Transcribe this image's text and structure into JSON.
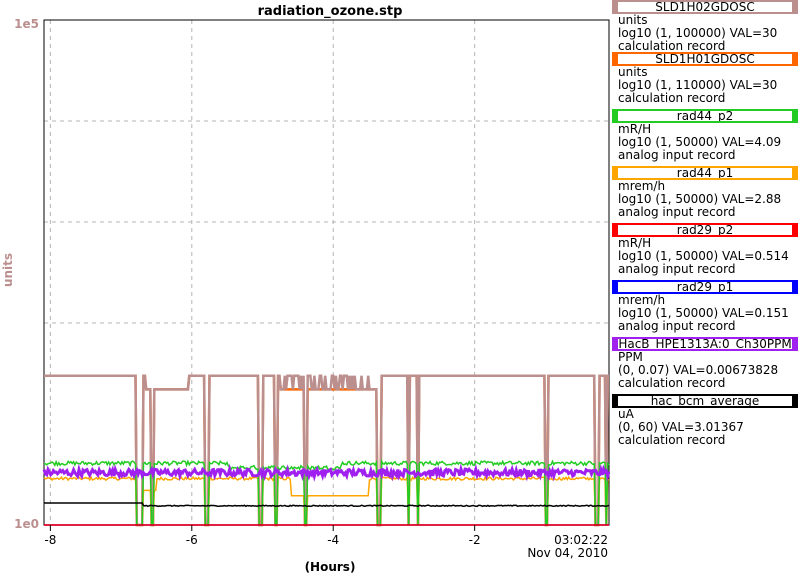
{
  "chart_data": {
    "type": "line",
    "title": "radiation_ozone.stp",
    "xlabel": "(Hours)",
    "ylabel": "units",
    "y_scale": "log",
    "ylim": [
      1,
      100000
    ],
    "xlim": [
      -8.09,
      -0.1
    ],
    "x_ticks": [
      -8,
      -6,
      -4,
      -2
    ],
    "x_tick_labels": [
      "-8",
      "-6",
      "-4",
      "-2"
    ],
    "end_time_label": "03:02:22",
    "end_date_label": "Nov 04, 2010",
    "y_top_label": "1e5",
    "y_bottom_label": "1e0",
    "grid": true,
    "legend_position": "right",
    "series": [
      {
        "name": "SLD1H02GDOSC",
        "units": "units",
        "range": "log10 (1, 100000)",
        "value": "VAL=30",
        "record": "calculation record",
        "color": "#bc8f8f",
        "level": 30
      },
      {
        "name": "SLD1H01GDOSC",
        "units": "units",
        "range": "log10 (1, 110000)",
        "value": "VAL=30",
        "record": "calculation record",
        "color": "#ff6600",
        "level": 30
      },
      {
        "name": "rad44_p2",
        "units": "mR/H",
        "range": "log10 (1, 50000)",
        "value": "VAL=4.09",
        "record": "analog input record",
        "color": "#22cc22",
        "level": 4.09
      },
      {
        "name": "rad44_p1",
        "units": "mrem/h",
        "range": "log10 (1, 50000)",
        "value": "VAL=2.88",
        "record": "analog input record",
        "color": "#ffa500",
        "level": 2.88
      },
      {
        "name": "rad29_p2",
        "units": "mR/H",
        "range": "log10 (1, 50000)",
        "value": "VAL=0.514",
        "record": "analog input record",
        "color": "#ff0000",
        "level": 0.514
      },
      {
        "name": "rad29_p1",
        "units": "mrem/h",
        "range": "log10 (1, 50000)",
        "value": "VAL=0.151",
        "record": "analog input record",
        "color": "#0000ff",
        "level": 0.151
      },
      {
        "name": "HacB_HPE1313A:0_Ch30PPM",
        "units": "PPM",
        "range": "(0, 0.07)",
        "value": "VAL=0.00673828",
        "record": "calculation record",
        "color": "#a020f0",
        "level": 0.00673828
      },
      {
        "name": "hac_bcm_average",
        "units": "uA",
        "range": "(0, 60)",
        "value": "VAL=3.01367",
        "record": "calculation record",
        "color": "#000000",
        "level": 3.01367
      }
    ]
  },
  "colors": {
    "axis_label": "#bc8f8f",
    "grid": "#b4b4b4"
  }
}
